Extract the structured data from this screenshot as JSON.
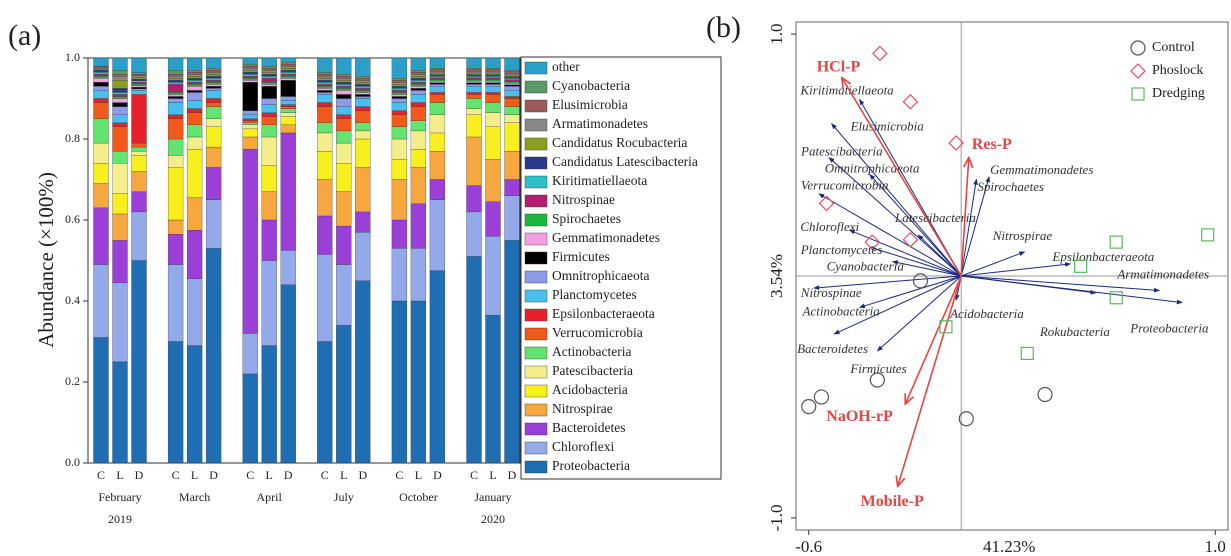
{
  "chart_data": [
    {
      "type": "stacked_bar",
      "panel_label": "(a)",
      "ylabel": "Abundance (×100%)",
      "categories": [
        "C",
        "L",
        "D",
        "C",
        "L",
        "D",
        "C",
        "L",
        "D",
        "C",
        "L",
        "D",
        "C",
        "L",
        "D",
        "C",
        "L",
        "D"
      ],
      "groups": [
        "February",
        "March",
        "April",
        "July",
        "October",
        "January"
      ],
      "group_years": [
        "2019",
        null,
        null,
        null,
        null,
        "2020"
      ],
      "ylim": [
        0,
        1
      ],
      "yticks": [
        {
          "value": 0,
          "label": "0.0"
        },
        0.2,
        0.4,
        0.6,
        0.8,
        {
          "value": 1,
          "label": "1.0"
        }
      ],
      "legend": "right",
      "series": [
        {
          "name": "Proteobacteria",
          "color": "#1f6db2",
          "values": [
            0.31,
            0.25,
            0.5,
            0.3,
            0.29,
            0.53,
            0.22,
            0.29,
            0.44,
            0.3,
            0.34,
            0.45,
            0.4,
            0.4,
            0.475,
            0.51,
            0.365,
            0.55
          ]
        },
        {
          "name": "Chloroflexi",
          "color": "#93a9ea",
          "values": [
            0.18,
            0.195,
            0.12,
            0.19,
            0.165,
            0.12,
            0.1,
            0.21,
            0.085,
            0.215,
            0.15,
            0.12,
            0.13,
            0.13,
            0.175,
            0.11,
            0.195,
            0.11
          ]
        },
        {
          "name": "Bacteroidetes",
          "color": "#9a3fd8",
          "values": [
            0.14,
            0.105,
            0.05,
            0.075,
            0.12,
            0.08,
            0.455,
            0.1,
            0.29,
            0.095,
            0.095,
            0.05,
            0.07,
            0.11,
            0.05,
            0.065,
            0.085,
            0.04
          ]
        },
        {
          "name": "Nitrospirae",
          "color": "#f7a73f",
          "values": [
            0.06,
            0.065,
            0.05,
            0.035,
            0.08,
            0.05,
            0.03,
            0.07,
            0.02,
            0.09,
            0.085,
            0.11,
            0.1,
            0.09,
            0.07,
            0.12,
            0.105,
            0.07
          ]
        },
        {
          "name": "Acidobacteria",
          "color": "#f8ef1e",
          "values": [
            0.05,
            0.05,
            0.04,
            0.13,
            0.12,
            0.05,
            0.02,
            0.065,
            0.02,
            0.07,
            0.07,
            0.07,
            0.05,
            0.045,
            0.045,
            0.055,
            0.08,
            0.07
          ]
        },
        {
          "name": "Patescibacteria",
          "color": "#f4ed8c",
          "values": [
            0.05,
            0.075,
            0.01,
            0.03,
            0.03,
            0.02,
            0.01,
            0.07,
            0.01,
            0.045,
            0.05,
            0.02,
            0.05,
            0.045,
            0.045,
            0.015,
            0.035,
            0.02
          ]
        },
        {
          "name": "Actinobacteria",
          "color": "#62e46e",
          "values": [
            0.06,
            0.03,
            0.01,
            0.04,
            0.03,
            0.03,
            0.005,
            0.03,
            0.01,
            0.025,
            0.03,
            0.02,
            0.03,
            0.025,
            0.03,
            0.025,
            0.025,
            0.02
          ]
        },
        {
          "name": "Verrucomicrobia",
          "color": "#f15a1b",
          "values": [
            0.04,
            0.06,
            0.01,
            0.05,
            0.03,
            0.01,
            0.005,
            0.02,
            0.005,
            0.04,
            0.03,
            0.03,
            0.03,
            0.035,
            0.02,
            0.01,
            0.02,
            0.02
          ]
        },
        {
          "name": "Epsilonbacteraeota",
          "color": "#e8202c",
          "values": [
            0.01,
            0.01,
            0.12,
            0.01,
            0.01,
            0.01,
            0.005,
            0.01,
            0.005,
            0.01,
            0.01,
            0.01,
            0.01,
            0.01,
            0.005,
            0.005,
            0.005,
            0.005
          ]
        },
        {
          "name": "Planctomycetes",
          "color": "#48bff0",
          "values": [
            0.02,
            0.02,
            0.01,
            0.03,
            0.02,
            0.02,
            0.01,
            0.02,
            0.01,
            0.02,
            0.02,
            0.02,
            0.02,
            0.02,
            0.015,
            0.015,
            0.015,
            0.015
          ]
        },
        {
          "name": "Omnitrophicaeota",
          "color": "#8c9ce6",
          "values": [
            0.01,
            0.02,
            0.004,
            0.01,
            0.02,
            0.005,
            0.01,
            0.015,
            0.01,
            0.005,
            0.02,
            0.005,
            0.01,
            0.01,
            0.005,
            0.005,
            0.005,
            0.01
          ]
        },
        {
          "name": "Firmicutes",
          "color": "#000000",
          "values": [
            0.01,
            0.01,
            0.004,
            0.005,
            0.005,
            0.005,
            0.07,
            0.03,
            0.04,
            0.005,
            0.01,
            0.005,
            0.005,
            0.005,
            0.004,
            0.004,
            0.004,
            0.004
          ]
        },
        {
          "name": "Gemmatimonadetes",
          "color": "#f59ee0",
          "values": [
            0.01,
            0.01,
            0.004,
            0.005,
            0.01,
            0.005,
            0.005,
            0.005,
            0.005,
            0.005,
            0.01,
            0.005,
            0.005,
            0.005,
            0.004,
            0.004,
            0.004,
            0.004
          ]
        },
        {
          "name": "Spirochaetes",
          "color": "#1bb83c",
          "values": [
            0.005,
            0.005,
            0.004,
            0.005,
            0.005,
            0.005,
            0.005,
            0.005,
            0.005,
            0.005,
            0.005,
            0.005,
            0.005,
            0.005,
            0.004,
            0.004,
            0.004,
            0.004
          ]
        },
        {
          "name": "Nitrospinae",
          "color": "#b0206e",
          "values": [
            0.005,
            0.005,
            0.004,
            0.02,
            0.005,
            0.005,
            0.005,
            0.01,
            0.005,
            0.005,
            0.005,
            0.005,
            0.005,
            0.005,
            0.004,
            0.004,
            0.004,
            0.004
          ]
        },
        {
          "name": "Kiritimatiellaeota",
          "color": "#2ac0c8",
          "values": [
            0.005,
            0.005,
            0.004,
            0.005,
            0.005,
            0.005,
            0.005,
            0.005,
            0.005,
            0.005,
            0.005,
            0.005,
            0.005,
            0.005,
            0.004,
            0.004,
            0.004,
            0.004
          ]
        },
        {
          "name": "Candidatus Latescibacteria",
          "color": "#283a8c",
          "values": [
            0.005,
            0.01,
            0.004,
            0.005,
            0.005,
            0.005,
            0.005,
            0.005,
            0.005,
            0.005,
            0.005,
            0.005,
            0.005,
            0.005,
            0.004,
            0.004,
            0.004,
            0.004
          ]
        },
        {
          "name": "Candidatus Rocubacteria",
          "color": "#8ca020",
          "values": [
            0.002,
            0.02,
            0.004,
            0.005,
            0.005,
            0.005,
            0.005,
            0.005,
            0.005,
            0.005,
            0.005,
            0.005,
            0.005,
            0.005,
            0.004,
            0.004,
            0.004,
            0.004
          ]
        },
        {
          "name": "Armatimonadetes",
          "color": "#888888",
          "values": [
            0.003,
            0.01,
            0.004,
            0.005,
            0.005,
            0.005,
            0.005,
            0.005,
            0.005,
            0.005,
            0.005,
            0.005,
            0.005,
            0.005,
            0.004,
            0.004,
            0.004,
            0.004
          ]
        },
        {
          "name": "Elusimicrobia",
          "color": "#a05a5a",
          "values": [
            0.003,
            0.005,
            0.004,
            0.005,
            0.005,
            0.005,
            0.005,
            0.005,
            0.005,
            0.005,
            0.005,
            0.005,
            0.005,
            0.005,
            0.004,
            0.004,
            0.004,
            0.004
          ]
        },
        {
          "name": "Cyanobacteria",
          "color": "#5a9a6a",
          "values": [
            0.002,
            0.01,
            0.004,
            0.01,
            0.005,
            0.005,
            0.005,
            0.005,
            0.005,
            0.005,
            0.005,
            0.005,
            0.005,
            0.005,
            0.004,
            0.004,
            0.004,
            0.004
          ]
        },
        {
          "name": "other",
          "color": "#2aa0c8",
          "values": [
            0.02,
            0.03,
            0.036,
            0.03,
            0.03,
            0.025,
            0.015,
            0.02,
            0.01,
            0.035,
            0.04,
            0.045,
            0.05,
            0.03,
            0.025,
            0.025,
            0.025,
            0.03
          ]
        }
      ]
    },
    {
      "type": "biplot",
      "panel_label": "(b)",
      "xlabel": "41.23%",
      "ylabel": "3.54%",
      "xlim": [
        -0.65,
        1.05
      ],
      "ylim": [
        -1.05,
        1.05
      ],
      "xticks": [
        -0.6,
        {
          "value": 1,
          "label": "1.0"
        }
      ],
      "yticks": [
        {
          "value": -1,
          "label": "-1.0"
        },
        {
          "value": 1,
          "label": "1.0"
        }
      ],
      "zero_lines": true,
      "legend": "top-right",
      "groups": [
        {
          "name": "Control",
          "marker": "circle",
          "color": "#555555",
          "x": [
            -0.6,
            -0.55,
            -0.33,
            -0.16,
            0.02,
            0.33
          ],
          "y": [
            -0.54,
            -0.5,
            -0.43,
            -0.02,
            -0.59,
            -0.49
          ]
        },
        {
          "name": "Phoslock",
          "marker": "diamond",
          "color": "#e0506a",
          "x": [
            -0.32,
            -0.2,
            -0.02,
            -0.53,
            -0.35,
            -0.2
          ],
          "y": [
            0.92,
            0.72,
            0.55,
            0.3,
            0.14,
            0.15
          ]
        },
        {
          "name": "Dredging",
          "marker": "square",
          "color": "#5cb85c",
          "x": [
            0.97,
            0.61,
            0.47,
            0.61,
            0.26,
            -0.06
          ],
          "y": [
            0.17,
            0.14,
            0.04,
            -0.09,
            -0.32,
            -0.21
          ]
        }
      ],
      "env_vectors": {
        "color": "#e04848",
        "labels": [
          "HCl-P",
          "Res-P",
          "NaOH-rP",
          "Mobile-P"
        ],
        "x": [
          -0.47,
          0.03,
          -0.22,
          -0.25
        ],
        "y": [
          0.82,
          0.49,
          -0.53,
          -0.87
        ]
      },
      "species_vectors": {
        "color": "#1c2a80",
        "labels": [
          "Kiritimatiellaeota",
          "Elusimicrobia",
          "Patescibacteria",
          "Omnitrophicaeota",
          "Verrucomicrobia",
          "Chloroflexi",
          "Planctomycetes",
          "Latescibacteria",
          "Cyanobacteria",
          "Nitrospinae",
          "Actinobacteria",
          "Bacteroidetes",
          "Firmicutes",
          "Acidobacteria",
          "Gemmatimonadetes",
          "Spirochaetes",
          "Nitrospirae",
          "Epsilonbacteraeota",
          "Armatimonadetes",
          "Rokubacteria",
          "Proteobacteria"
        ],
        "x": [
          -0.4,
          -0.51,
          -0.52,
          -0.36,
          -0.56,
          -0.44,
          -0.36,
          -0.17,
          -0.27,
          -0.58,
          -0.4,
          -0.5,
          -0.33,
          -0.02,
          0.11,
          0.06,
          0.25,
          0.43,
          0.78,
          0.53,
          0.87
        ],
        "y": [
          0.73,
          0.63,
          0.49,
          0.42,
          0.34,
          0.19,
          0.12,
          0.17,
          0.06,
          -0.05,
          -0.13,
          -0.24,
          -0.31,
          -0.1,
          0.41,
          0.4,
          0.1,
          0.05,
          -0.06,
          -0.07,
          -0.11
        ]
      }
    }
  ]
}
